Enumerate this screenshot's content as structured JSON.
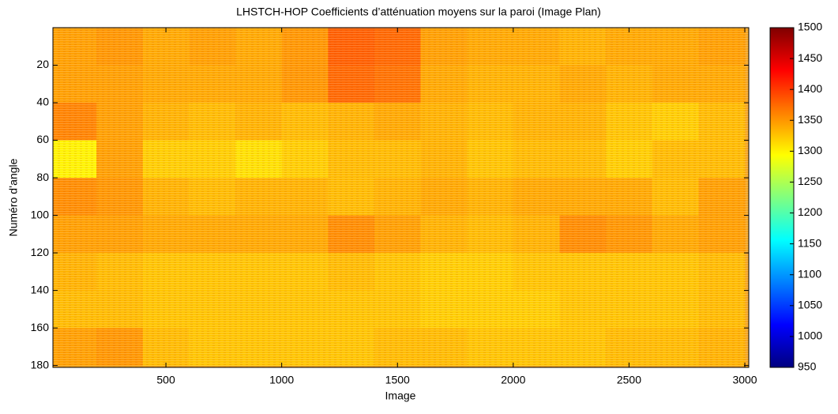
{
  "chart_data": {
    "type": "heatmap",
    "title": "LHSTCH-HOP Coefficients d’atténuation moyens sur la paroi (Image Plan)",
    "xlabel": "Image",
    "ylabel": "Numéro d’angle",
    "x": [
      100,
      300,
      500,
      700,
      900,
      1100,
      1300,
      1500,
      1700,
      1900,
      2100,
      2300,
      2500,
      2700,
      2900
    ],
    "y": [
      10,
      30,
      50,
      70,
      90,
      110,
      130,
      150,
      170
    ],
    "z": [
      [
        1345,
        1350,
        1340,
        1345,
        1340,
        1350,
        1380,
        1375,
        1345,
        1340,
        1340,
        1335,
        1340,
        1340,
        1345
      ],
      [
        1345,
        1345,
        1340,
        1340,
        1340,
        1350,
        1375,
        1370,
        1340,
        1335,
        1335,
        1340,
        1335,
        1340,
        1340
      ],
      [
        1360,
        1345,
        1335,
        1330,
        1335,
        1330,
        1335,
        1340,
        1335,
        1330,
        1335,
        1335,
        1325,
        1320,
        1330
      ],
      [
        1300,
        1345,
        1320,
        1320,
        1310,
        1320,
        1330,
        1330,
        1335,
        1325,
        1330,
        1330,
        1320,
        1330,
        1330
      ],
      [
        1355,
        1350,
        1335,
        1330,
        1335,
        1335,
        1330,
        1335,
        1340,
        1335,
        1340,
        1340,
        1340,
        1330,
        1345
      ],
      [
        1345,
        1345,
        1340,
        1340,
        1340,
        1340,
        1355,
        1345,
        1335,
        1330,
        1335,
        1355,
        1350,
        1340,
        1345
      ],
      [
        1335,
        1330,
        1325,
        1325,
        1325,
        1325,
        1330,
        1325,
        1320,
        1320,
        1325,
        1325,
        1325,
        1325,
        1330
      ],
      [
        1330,
        1330,
        1325,
        1325,
        1325,
        1325,
        1325,
        1325,
        1320,
        1320,
        1320,
        1325,
        1325,
        1325,
        1330
      ],
      [
        1345,
        1350,
        1330,
        1325,
        1325,
        1325,
        1325,
        1330,
        1330,
        1325,
        1325,
        1325,
        1330,
        1330,
        1335
      ]
    ],
    "xlim": [
      12,
      3017
    ],
    "ylim": [
      0,
      181
    ],
    "y_reversed": true,
    "xticks": [
      500,
      1000,
      1500,
      2000,
      2500,
      3000
    ],
    "yticks": [
      20,
      40,
      60,
      80,
      100,
      120,
      140,
      160,
      180
    ],
    "colormap": "jet",
    "clim": [
      950,
      1500
    ],
    "cticks": [
      950,
      1000,
      1050,
      1100,
      1150,
      1200,
      1250,
      1300,
      1350,
      1400,
      1450,
      1500
    ]
  }
}
